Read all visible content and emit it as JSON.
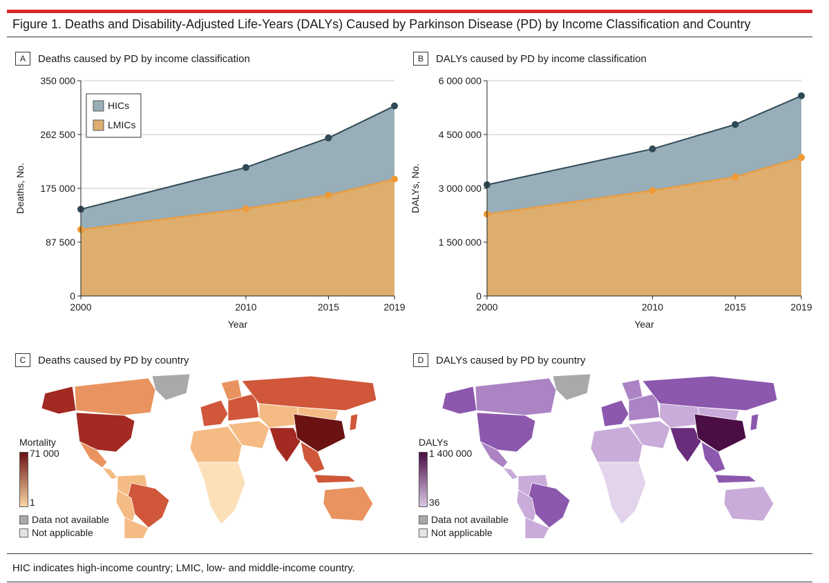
{
  "figure": {
    "title": "Figure 1. Deaths and Disability-Adjusted Life-Years (DALYs) Caused by Parkinson Disease (PD) by Income Classification and Country",
    "footnote": "HIC indicates high-income country; LMIC, low- and middle-income country."
  },
  "colors": {
    "accent_bar": "#d9262c",
    "hic_fill": "#98aeb8",
    "lmic_fill": "#ddae6e",
    "hic_line": "#2f4a56",
    "lmic_line": "#ef9a37",
    "mortality_high": "#6b1212",
    "mortality_low": "#f9d7a5",
    "daly_high": "#4a0d44",
    "daly_low": "#d9c7e4",
    "not_available": "#a9a9a9",
    "not_applicable": "#e3e3e3"
  },
  "panels": {
    "a": {
      "letter": "A",
      "title": "Deaths caused by PD by income classification"
    },
    "b": {
      "letter": "B",
      "title": "DALYs caused by PD by income classification"
    },
    "c": {
      "letter": "C",
      "title": "Deaths caused by PD by country"
    },
    "d": {
      "letter": "D",
      "title": "DALYs caused by PD by country"
    }
  },
  "chart_data": [
    {
      "id": "A",
      "type": "area",
      "title": "Deaths caused by PD by income classification",
      "xlabel": "Year",
      "ylabel": "Deaths, No.",
      "x": [
        2000,
        2010,
        2015,
        2019
      ],
      "ylim": [
        0,
        350000
      ],
      "yticks": [
        0,
        87500,
        175000,
        262500,
        350000
      ],
      "ytick_labels": [
        "0",
        "87 500",
        "175 000",
        "262 500",
        "350 000"
      ],
      "legend": {
        "position": "top-left",
        "entries": [
          "HICs",
          "LMICs"
        ]
      },
      "grid": true,
      "series": [
        {
          "name": "HICs",
          "values": [
            141000,
            209000,
            257000,
            309000
          ]
        },
        {
          "name": "LMICs",
          "values": [
            108000,
            142000,
            164000,
            190000
          ]
        }
      ]
    },
    {
      "id": "B",
      "type": "area",
      "title": "DALYs caused by PD by income classification",
      "xlabel": "Year",
      "ylabel": "DALYs, No.",
      "x": [
        2000,
        2010,
        2015,
        2019
      ],
      "ylim": [
        0,
        6000000
      ],
      "yticks": [
        0,
        1500000,
        3000000,
        4500000,
        6000000
      ],
      "ytick_labels": [
        "0",
        "1 500 000",
        "3 000 000",
        "4 500 000",
        "6 000 000"
      ],
      "grid": true,
      "series": [
        {
          "name": "HICs",
          "values": [
            3100000,
            4100000,
            4780000,
            5580000
          ]
        },
        {
          "name": "LMICs",
          "values": [
            2280000,
            2940000,
            3320000,
            3860000
          ]
        }
      ]
    }
  ],
  "map_legends": {
    "c": {
      "title": "Mortality",
      "max": "71 000",
      "min": "1",
      "not_available": "Data not available",
      "not_applicable": "Not applicable"
    },
    "d": {
      "title": "DALYs",
      "max": "1 400 000",
      "min": "36",
      "not_available": "Data not available",
      "not_applicable": "Not applicable"
    }
  }
}
